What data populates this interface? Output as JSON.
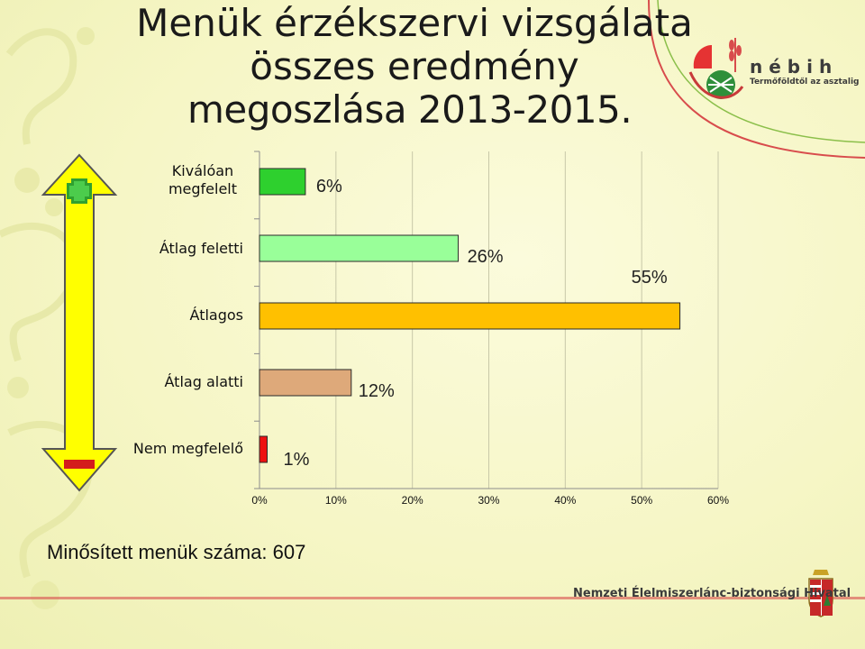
{
  "title": {
    "line1": "Menük érzékszervi vizsgálata",
    "line2": "összes eredmény",
    "line3": "megoszlása 2013-2015."
  },
  "logo": {
    "name": "nébih",
    "tagline": "Termőföldtől az asztalig"
  },
  "footer": {
    "note": "Minősített menük száma: 607",
    "agency": "Nemzeti Élelmiszerlánc-biztonsági Hivatal"
  },
  "scale_arrow": {
    "top_symbol": "plus",
    "bottom_symbol": "minus"
  },
  "chart_data": {
    "type": "bar",
    "orientation": "horizontal",
    "categories": [
      "Kiválóan megfelelt",
      "Átlag feletti",
      "Átlagos",
      "Átlag alatti",
      "Nem megfelelő"
    ],
    "values": [
      6,
      26,
      55,
      12,
      1
    ],
    "data_labels": [
      "6%",
      "26%",
      "55%",
      "12%",
      "1%"
    ],
    "colors": [
      "#2ed02e",
      "#99ff99",
      "#ffc000",
      "#dea97a",
      "#ee1111"
    ],
    "xlim": [
      0,
      60
    ],
    "xticks": [
      "0%",
      "10%",
      "20%",
      "30%",
      "40%",
      "50%",
      "60%"
    ],
    "grid": true
  }
}
